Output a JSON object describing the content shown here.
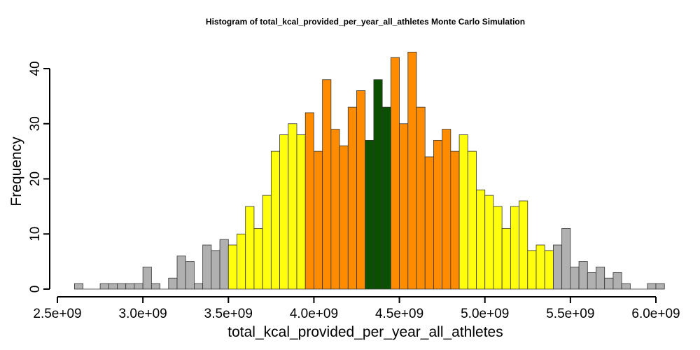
{
  "chart_data": {
    "type": "bar",
    "title": "Histogram of  total_kcal_provided_per_year_all_athletes  Monte Carlo Simulation",
    "xlabel": "total_kcal_provided_per_year_all_athletes",
    "ylabel": "Frequency",
    "xlim": [
      2500000000,
      6000000000
    ],
    "ylim": [
      0,
      40
    ],
    "bin_width": 50000000,
    "bin_start": 2600000000,
    "x_ticks": [
      2500000000,
      3000000000,
      3500000000,
      4000000000,
      4500000000,
      5000000000,
      5500000000,
      6000000000
    ],
    "x_tick_labels": [
      "2.5e+09",
      "3.0e+09",
      "3.5e+09",
      "4.0e+09",
      "4.5e+09",
      "5.0e+09",
      "5.5e+09",
      "6.0e+09"
    ],
    "y_ticks": [
      0,
      10,
      20,
      30,
      40
    ],
    "y_tick_labels": [
      "0",
      "10",
      "20",
      "30",
      "40"
    ],
    "values": [
      1,
      0,
      0,
      1,
      1,
      1,
      1,
      1,
      4,
      1,
      0,
      2,
      6,
      5,
      1,
      8,
      7,
      9,
      8,
      10,
      15,
      11,
      17,
      25,
      28,
      30,
      28,
      32,
      25,
      38,
      29,
      26,
      33,
      36,
      27,
      38,
      33,
      42,
      30,
      43,
      33,
      24,
      27,
      29,
      25,
      28,
      25,
      18,
      17,
      15,
      11,
      15,
      16,
      7,
      8,
      7,
      8,
      11,
      4,
      5,
      3,
      4,
      2,
      3,
      1,
      0,
      0,
      1,
      1
    ],
    "colors": {
      "tail": "#b0b0b0",
      "outer": "#ffff0d",
      "inner": "#ff8c00",
      "center": "#0a5000"
    },
    "bin_colors": [
      "tail",
      "tail",
      "tail",
      "tail",
      "tail",
      "tail",
      "tail",
      "tail",
      "tail",
      "tail",
      "tail",
      "tail",
      "tail",
      "tail",
      "tail",
      "tail",
      "tail",
      "tail",
      "outer",
      "outer",
      "outer",
      "outer",
      "outer",
      "outer",
      "outer",
      "outer",
      "outer",
      "inner",
      "inner",
      "inner",
      "inner",
      "inner",
      "inner",
      "inner",
      "center",
      "center",
      "center",
      "inner",
      "inner",
      "inner",
      "inner",
      "inner",
      "inner",
      "inner",
      "inner",
      "outer",
      "outer",
      "outer",
      "outer",
      "outer",
      "outer",
      "outer",
      "outer",
      "outer",
      "outer",
      "outer",
      "tail",
      "tail",
      "tail",
      "tail",
      "tail",
      "tail",
      "tail",
      "tail",
      "tail",
      "tail",
      "tail",
      "tail",
      "tail"
    ]
  }
}
